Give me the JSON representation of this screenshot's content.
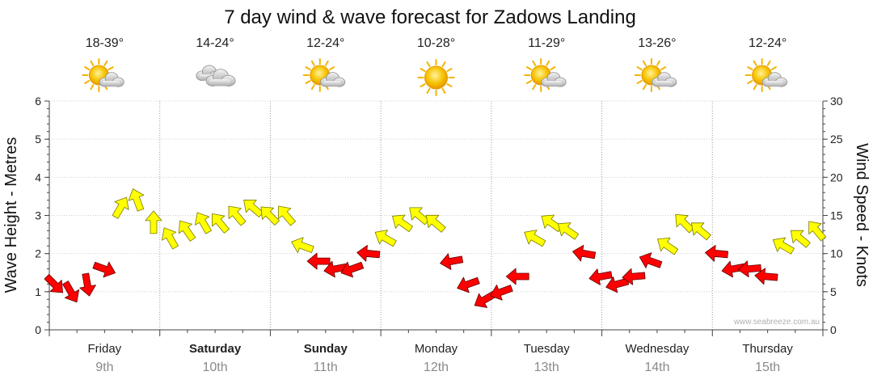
{
  "chart_data": {
    "type": "line",
    "title": "7 day wind & wave forecast for Zadows Landing",
    "ylabel_left": "Wave Height - Metres",
    "ylabel_right": "Wind Speed - Knots",
    "ylim_left": [
      0,
      6
    ],
    "ylim_right": [
      0,
      30
    ],
    "yticks_left": [
      "0",
      "1",
      "2",
      "3",
      "4",
      "5",
      "6"
    ],
    "yticks_right": [
      "0",
      "5",
      "10",
      "15",
      "20",
      "25",
      "30"
    ],
    "grid": true,
    "watermark": "www.seabreeze.com.au",
    "days": [
      {
        "name": "Friday",
        "date": "9th",
        "bold": false,
        "temp": "18-39°",
        "icon": "partly-cloudy-icon"
      },
      {
        "name": "Saturday",
        "date": "10th",
        "bold": true,
        "temp": "14-24°",
        "icon": "cloudy-icon"
      },
      {
        "name": "Sunday",
        "date": "11th",
        "bold": true,
        "temp": "12-24°",
        "icon": "partly-cloudy-icon"
      },
      {
        "name": "Monday",
        "date": "12th",
        "bold": false,
        "temp": "10-28°",
        "icon": "sunny-icon"
      },
      {
        "name": "Tuesday",
        "date": "13th",
        "bold": false,
        "temp": "11-29°",
        "icon": "partly-cloudy-icon"
      },
      {
        "name": "Wednesday",
        "date": "14th",
        "bold": false,
        "temp": "13-26°",
        "icon": "partly-cloudy-icon"
      },
      {
        "name": "Thursday",
        "date": "15th",
        "bold": false,
        "temp": "12-24°",
        "icon": "partly-cloudy-icon"
      }
    ],
    "series": [
      {
        "colors": {
          "strong": "#ffff00",
          "light": "#ff0000"
        },
        "threshold_knots": 11,
        "x_days": [
          0.0,
          0.15,
          0.3,
          0.45,
          0.6,
          0.75,
          0.9,
          1.05,
          1.2,
          1.35,
          1.5,
          1.65,
          1.8,
          1.95,
          2.1,
          2.25,
          2.4,
          2.55,
          2.7,
          2.85,
          3.0,
          3.15,
          3.3,
          3.45,
          3.6,
          3.75,
          3.9,
          4.05,
          4.2,
          4.35,
          4.5,
          4.65,
          4.8,
          4.95,
          5.1,
          5.25,
          5.4,
          5.55,
          5.7,
          5.85,
          6.0,
          6.15,
          6.3,
          6.45,
          6.6,
          6.75,
          6.9
        ],
        "wind_knots": [
          6,
          5,
          6,
          8,
          16,
          17,
          14,
          12,
          13,
          14,
          14,
          15,
          16,
          15,
          15,
          11,
          9,
          8,
          8,
          10,
          12,
          14,
          15,
          14,
          9,
          6,
          4,
          5,
          7,
          12,
          14,
          13,
          10,
          7,
          6,
          7,
          9,
          11,
          14,
          13,
          10,
          8,
          8,
          7,
          11,
          12,
          13
        ],
        "direction_deg": [
          45,
          60,
          80,
          20,
          300,
          250,
          270,
          240,
          235,
          240,
          230,
          230,
          220,
          225,
          230,
          200,
          180,
          170,
          160,
          185,
          210,
          215,
          220,
          220,
          170,
          160,
          150,
          160,
          180,
          210,
          215,
          215,
          190,
          170,
          165,
          175,
          200,
          215,
          225,
          220,
          185,
          170,
          175,
          185,
          210,
          220,
          230
        ]
      }
    ]
  }
}
